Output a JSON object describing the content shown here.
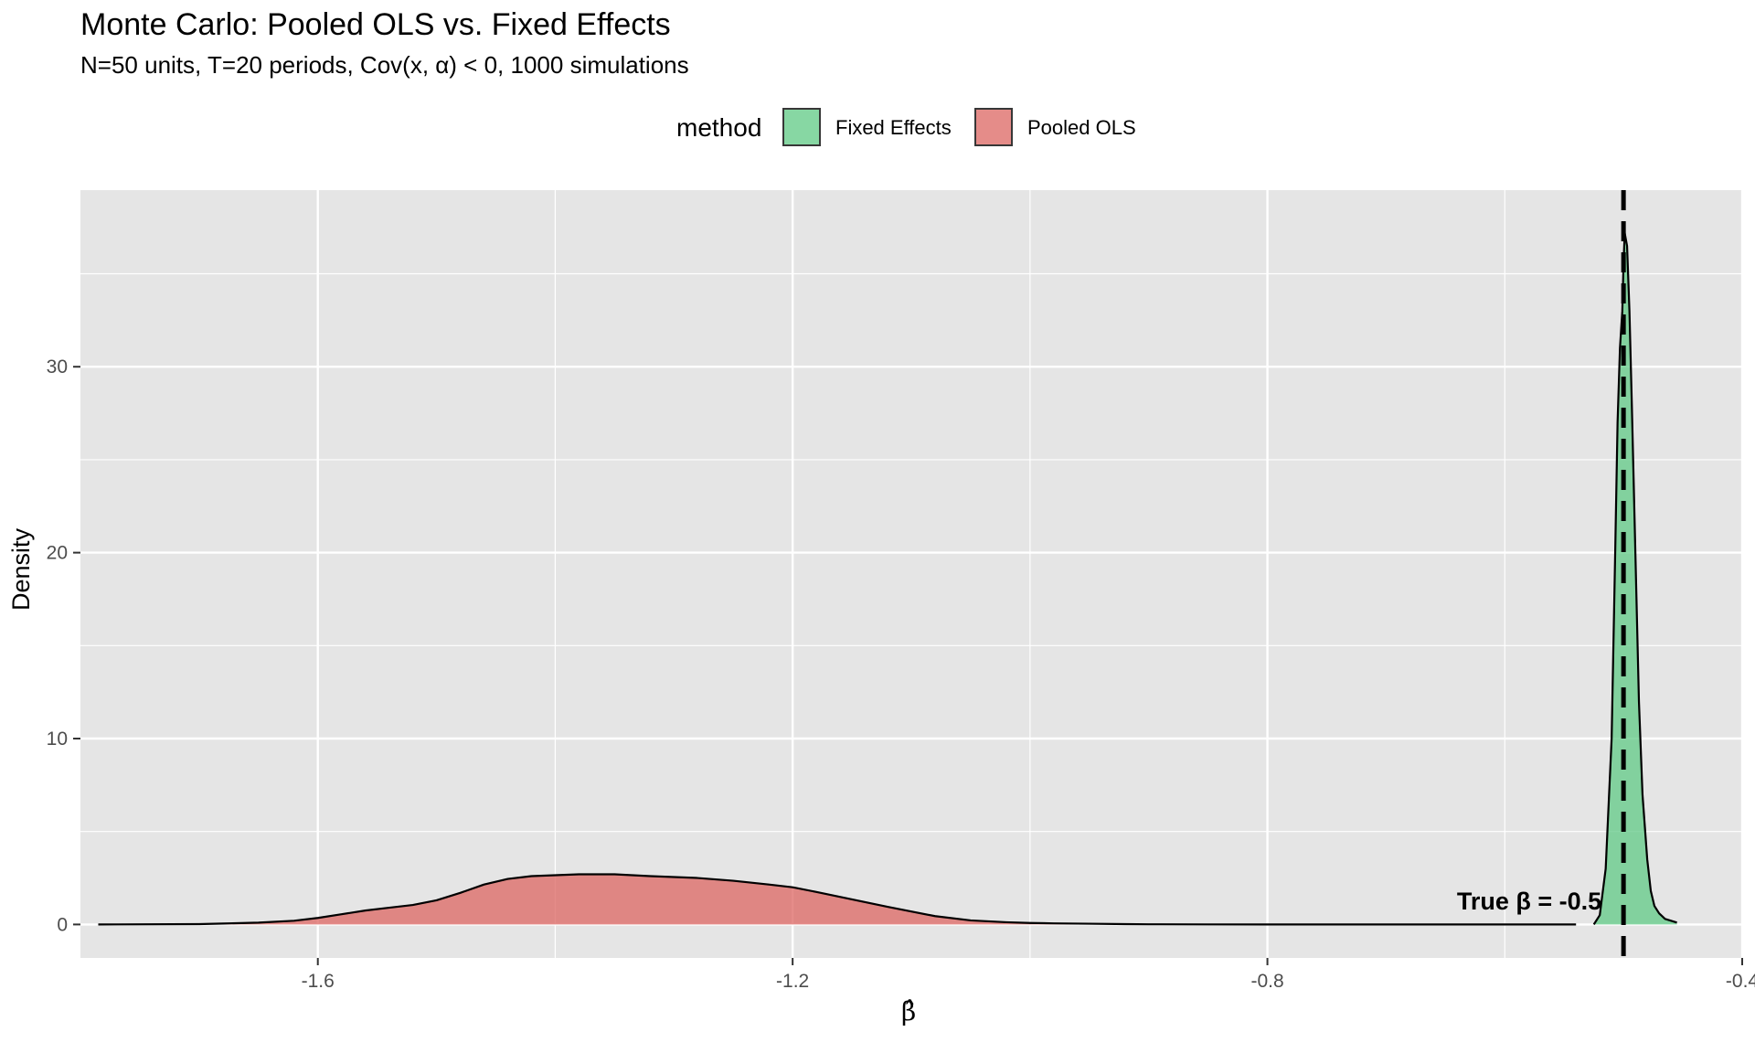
{
  "header": {
    "title": "Monte Carlo: Pooled OLS vs. Fixed Effects",
    "subtitle": "N=50 units, T=20 periods, Cov(x, α) < 0, 1000 simulations"
  },
  "legend": {
    "title": "method",
    "items": [
      {
        "label": "Fixed Effects",
        "color": "#66CC8A"
      },
      {
        "label": "Pooled OLS",
        "color": "#DE6C68"
      }
    ]
  },
  "colors": {
    "panel_bg": "#E5E5E5",
    "grid": "#FFFFFF",
    "fixed_effects": "#66CC8A",
    "pooled_ols": "#DE6C68"
  },
  "chart_data": {
    "type": "area",
    "title": "Monte Carlo: Pooled OLS vs. Fixed Effects",
    "subtitle": "N=50 units, T=20 periods, Cov(x, α) < 0, 1000 simulations",
    "xlabel": "β̂",
    "ylabel": "Density",
    "xlim": [
      -1.8,
      -0.4
    ],
    "ylim": [
      -1.8,
      39.5
    ],
    "x_ticks": [
      -1.6,
      -1.2,
      -0.8,
      -0.4
    ],
    "x_tick_labels": [
      "-1.6",
      "-1.2",
      "-0.8",
      "-0.4"
    ],
    "y_ticks": [
      0,
      10,
      20,
      30
    ],
    "y_tick_labels": [
      "0",
      "10",
      "20",
      "30"
    ],
    "grid": true,
    "legend_position": "top",
    "series": [
      {
        "name": "Fixed Effects",
        "x": [
          -0.525,
          -0.52,
          -0.515,
          -0.51,
          -0.507,
          -0.505,
          -0.503,
          -0.501,
          -0.5,
          -0.499,
          -0.497,
          -0.495,
          -0.493,
          -0.49,
          -0.487,
          -0.484,
          -0.48,
          -0.477,
          -0.474,
          -0.47,
          -0.465,
          -0.455
        ],
        "values": [
          0,
          0.5,
          3,
          10,
          20,
          27,
          31,
          33,
          35.5,
          37.2,
          36.5,
          33,
          28,
          20,
          12,
          7,
          3.5,
          1.8,
          1.0,
          0.6,
          0.3,
          0.1
        ]
      },
      {
        "name": "Pooled OLS",
        "x": [
          -1.785,
          -1.7,
          -1.68,
          -1.65,
          -1.62,
          -1.6,
          -1.58,
          -1.56,
          -1.54,
          -1.52,
          -1.5,
          -1.48,
          -1.46,
          -1.44,
          -1.42,
          -1.4,
          -1.38,
          -1.35,
          -1.32,
          -1.3,
          -1.28,
          -1.25,
          -1.22,
          -1.2,
          -1.18,
          -1.15,
          -1.12,
          -1.1,
          -1.08,
          -1.05,
          -1.02,
          -1.0,
          -0.98,
          -0.95,
          -0.92,
          -0.9,
          -0.85,
          -0.8,
          -0.7,
          -0.6,
          -0.54
        ],
        "values": [
          0,
          0.02,
          0.05,
          0.1,
          0.2,
          0.35,
          0.55,
          0.75,
          0.9,
          1.05,
          1.3,
          1.7,
          2.15,
          2.45,
          2.6,
          2.65,
          2.7,
          2.7,
          2.6,
          2.55,
          2.5,
          2.35,
          2.15,
          2.0,
          1.75,
          1.35,
          0.95,
          0.7,
          0.45,
          0.22,
          0.12,
          0.08,
          0.06,
          0.04,
          0.02,
          0.01,
          0.005,
          0,
          0,
          0,
          0
        ]
      }
    ],
    "annotations": [
      {
        "type": "vline",
        "x": -0.5,
        "style": "dashed"
      },
      {
        "type": "text",
        "text": "True β = -0.5",
        "x": -0.5,
        "y": 0.9,
        "anchor": "end"
      }
    ]
  }
}
